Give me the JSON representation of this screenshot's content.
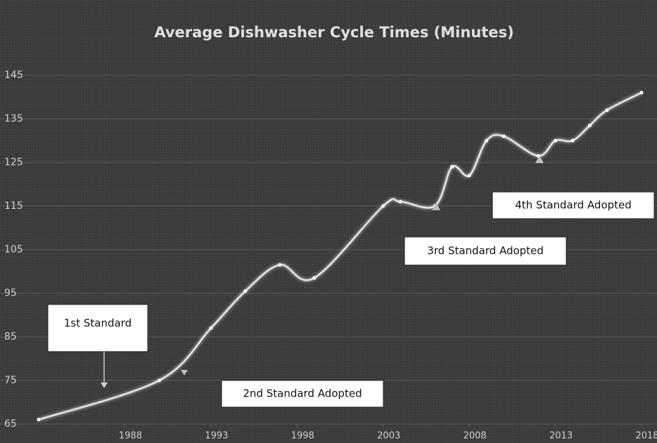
{
  "chart_data": {
    "type": "line",
    "title": "Average Dishwasher Cycle Times (Minutes)",
    "x": [
      1983,
      1990,
      1993,
      1995,
      1997,
      1999,
      2003,
      2004,
      2006,
      2007,
      2008,
      2009,
      2010,
      2012,
      2013,
      2014,
      2015,
      2016,
      2018
    ],
    "series": [
      {
        "name": "Average Dishwasher Cycle Times",
        "color": "#e6e6e6",
        "values": [
          66,
          75,
          87,
          95.5,
          101.5,
          98.5,
          115,
          116,
          115,
          124,
          122,
          130,
          131,
          126.5,
          130,
          130,
          133.5,
          137,
          141
        ]
      }
    ],
    "xlim": [
      1983,
      2018
    ],
    "xticks": [
      1988,
      1993,
      1998,
      2003,
      2008,
      2013,
      2018
    ],
    "ylim": [
      65,
      145
    ],
    "yticks": [
      65,
      75,
      85,
      95,
      105,
      115,
      125,
      135,
      145
    ],
    "grid": true,
    "annotations": [
      "1st Standard",
      "2nd Standard Adopted",
      "3rd Standard Adopted",
      "4th Standard Adopted"
    ]
  }
}
